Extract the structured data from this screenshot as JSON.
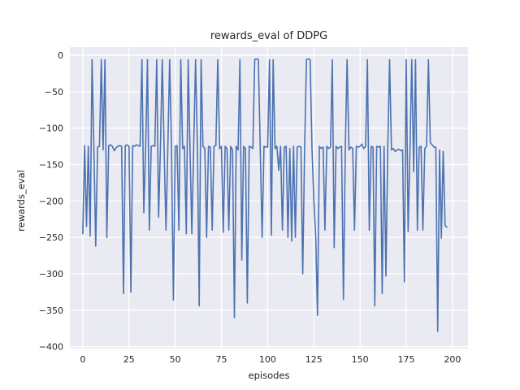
{
  "figure": {
    "title": "rewards_eval of DDPG",
    "xlabel": "episodes",
    "ylabel": "rewards_eval"
  },
  "colors": {
    "line": "#4c72b0",
    "plot_background": "#eaeaf2",
    "grid": "#ffffff",
    "text": "#262626",
    "figure_background": "#ffffff"
  },
  "chart_data": {
    "type": "line",
    "title": "rewards_eval of DDPG",
    "xlabel": "episodes",
    "ylabel": "rewards_eval",
    "legend": null,
    "grid": true,
    "x_ticks": [
      0,
      25,
      50,
      75,
      100,
      125,
      150,
      175,
      200
    ],
    "y_ticks": [
      0,
      -50,
      -100,
      -150,
      -200,
      -250,
      -300,
      -350,
      -400
    ],
    "xlim": [
      -7,
      208.4
    ],
    "ylim": [
      -402.6,
      11.2
    ],
    "x_start": 0,
    "x_step": 1,
    "values": [
      -245,
      -124,
      -235,
      -125,
      -248,
      -6,
      -130,
      -262,
      -126,
      -125,
      -6,
      -130,
      -6,
      -250,
      -124,
      -123,
      -125,
      -131,
      -127,
      -125,
      -124,
      -125,
      -327,
      -124,
      -123,
      -125,
      -325,
      -124,
      -125,
      -123,
      -124,
      -125,
      -6,
      -216,
      -125,
      -6,
      -240,
      -125,
      -124,
      -125,
      -6,
      -222,
      -125,
      -6,
      -128,
      -240,
      -125,
      -6,
      -130,
      -336,
      -125,
      -124,
      -240,
      -6,
      -128,
      -125,
      -245,
      -6,
      -130,
      -245,
      -125,
      -6,
      -128,
      -344,
      -6,
      -125,
      -128,
      -250,
      -125,
      -126,
      -240,
      -125,
      -124,
      -6,
      -128,
      -125,
      -243,
      -125,
      -128,
      -240,
      -125,
      -130,
      -360,
      -125,
      -130,
      -6,
      -281,
      -125,
      -128,
      -340,
      -125,
      -126,
      -128,
      -6,
      -5,
      -6,
      -128,
      -250,
      -125,
      -126,
      -126,
      -6,
      -247,
      -6,
      -128,
      -125,
      -158,
      -125,
      -240,
      -126,
      -125,
      -250,
      -128,
      -255,
      -125,
      -250,
      -126,
      -125,
      -126,
      -300,
      -128,
      -6,
      -5,
      -6,
      -128,
      -200,
      -250,
      -357,
      -125,
      -128,
      -126,
      -240,
      -125,
      -128,
      -126,
      -6,
      -264,
      -125,
      -128,
      -126,
      -125,
      -335,
      -128,
      -6,
      -130,
      -126,
      -128,
      -240,
      -125,
      -126,
      -125,
      -122,
      -128,
      -125,
      -6,
      -240,
      -125,
      -126,
      -344,
      -125,
      -126,
      -125,
      -327,
      -125,
      -303,
      -125,
      -6,
      -130,
      -128,
      -132,
      -130,
      -129,
      -131,
      -130,
      -311,
      -6,
      -242,
      -128,
      -6,
      -160,
      -6,
      -240,
      -126,
      -125,
      -240,
      -128,
      -125,
      -6,
      -120,
      -123,
      -126,
      -126,
      -379,
      -130,
      -251,
      -132,
      -234,
      -236
    ]
  }
}
